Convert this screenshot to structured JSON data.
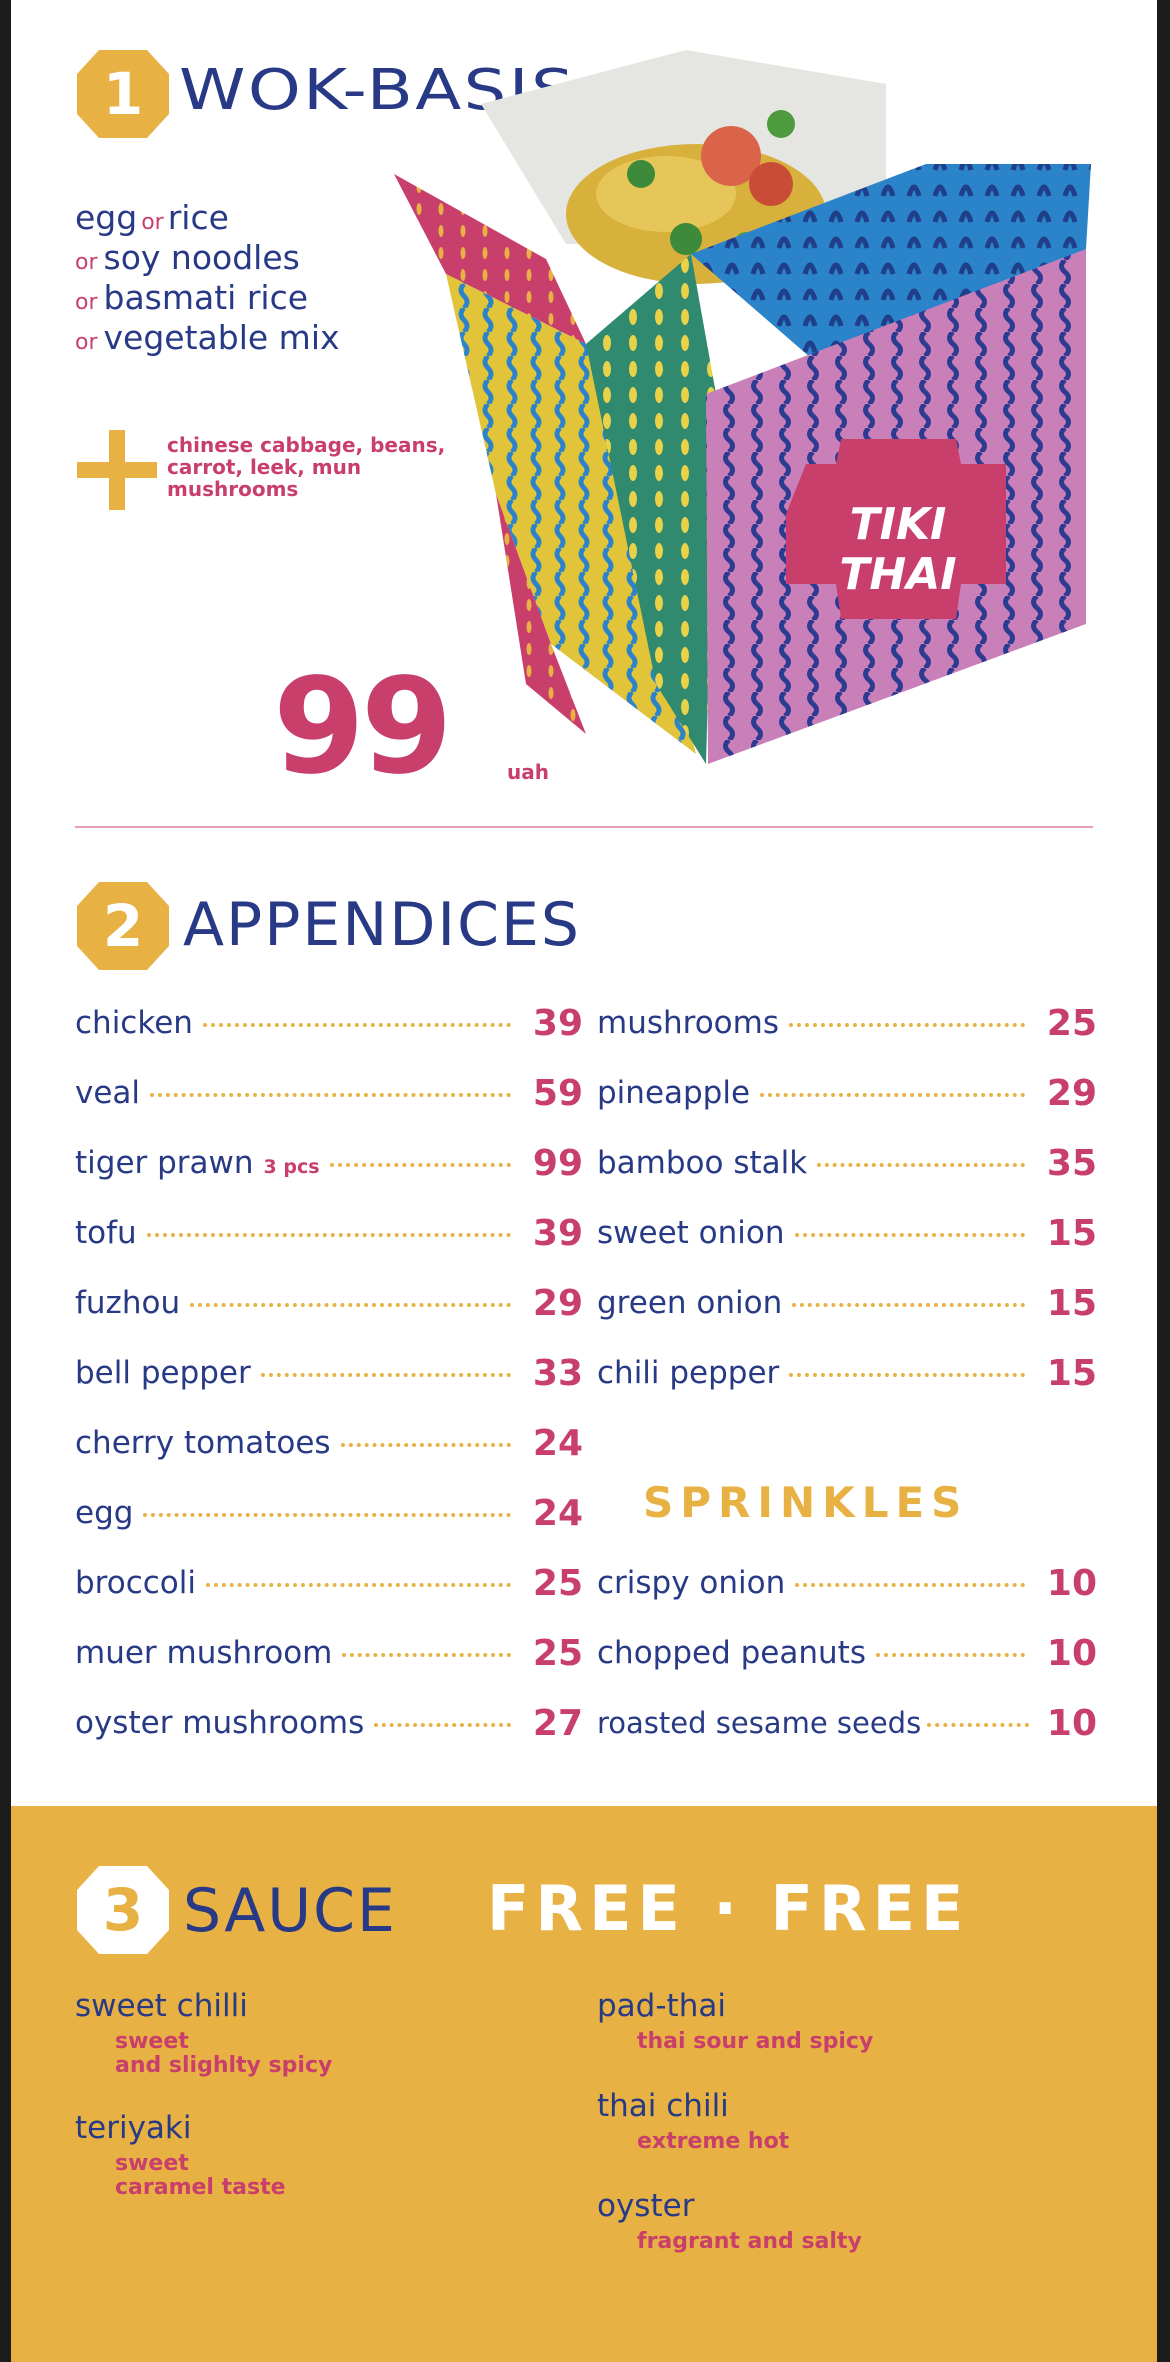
{
  "colors": {
    "navy": "#283a86",
    "pink": "#c93f6b",
    "gold": "#e8b143",
    "white": "#ffffff"
  },
  "wok": {
    "number": "1",
    "title": "WOK-BASIS",
    "lines": [
      {
        "parts": [
          "egg",
          "or",
          "rice"
        ]
      },
      {
        "or": "or",
        "text": "soy noodles"
      },
      {
        "or": "or",
        "text": "basmati rice"
      },
      {
        "or": "or",
        "text": "vegetable mix"
      }
    ],
    "extras": "chinese cabbage, beans, carrot, leek, mun mushrooms",
    "price": "99",
    "currency": "uah",
    "box_logo_top": "TIKI",
    "box_logo_bottom": "THAI"
  },
  "appendices": {
    "number": "2",
    "title": "APPENDICES",
    "left": [
      {
        "name": "chicken",
        "price": "39"
      },
      {
        "name": "veal",
        "price": "59"
      },
      {
        "name": "tiger prawn",
        "note": "3 pcs",
        "price": "99"
      },
      {
        "name": "tofu",
        "price": "39"
      },
      {
        "name": "fuzhou",
        "price": "29"
      },
      {
        "name": "bell pepper",
        "price": "33"
      },
      {
        "name": "cherry tomatoes",
        "price": "24"
      },
      {
        "name": "egg",
        "price": "24"
      },
      {
        "name": "broccoli",
        "price": "25"
      },
      {
        "name": "muer mushroom",
        "price": "25"
      },
      {
        "name": "oyster mushrooms",
        "price": "27"
      }
    ],
    "right": [
      {
        "name": "mushrooms",
        "price": "25"
      },
      {
        "name": "pineapple",
        "price": "29"
      },
      {
        "name": "bamboo stalk",
        "price": "35"
      },
      {
        "name": "sweet onion",
        "price": "15"
      },
      {
        "name": "green onion",
        "price": "15"
      },
      {
        "name": "chili pepper",
        "price": "15"
      }
    ],
    "sprinkles_title": "SPRINKLES",
    "sprinkles": [
      {
        "name": "crispy onion",
        "price": "10"
      },
      {
        "name": "chopped  peanuts",
        "price": "10"
      },
      {
        "name": "roasted sesame seeds",
        "price": "10"
      }
    ]
  },
  "sauce": {
    "number": "3",
    "title": "SAUCE",
    "free_text": "FREE · FREE",
    "left": [
      {
        "name": "sweet chilli",
        "desc1": "sweet",
        "desc2": "and slighlty spicy"
      },
      {
        "name": "teriyaki",
        "desc1": "sweet",
        "desc2": "caramel taste"
      }
    ],
    "right": [
      {
        "name": "pad-thai",
        "desc": "thai sour and spicy"
      },
      {
        "name": "thai chili",
        "desc": "extreme hot"
      },
      {
        "name": "oyster",
        "desc": "fragrant and salty"
      }
    ]
  }
}
